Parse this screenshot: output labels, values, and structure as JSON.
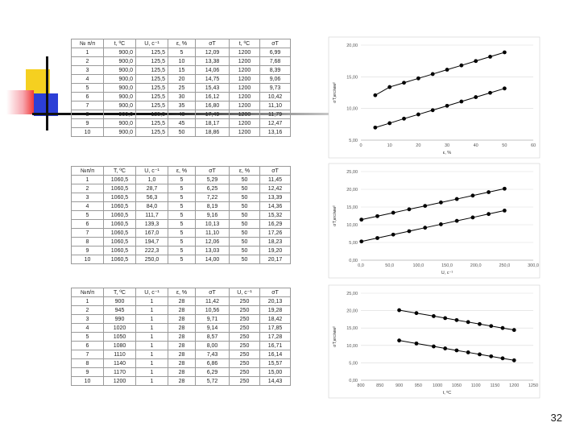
{
  "page_number": "32",
  "table1": {
    "headers": [
      "№ п/п",
      "t, ºC",
      "U, с⁻¹",
      "ε, %",
      "σT",
      "t, ºC",
      "σT"
    ],
    "rows": [
      [
        "1",
        "900,0",
        "125,5",
        "5",
        "12,09",
        "1200",
        "6,99"
      ],
      [
        "2",
        "900,0",
        "125,5",
        "10",
        "13,38",
        "1200",
        "7,68"
      ],
      [
        "3",
        "900,0",
        "125,5",
        "15",
        "14,06",
        "1200",
        "8,39"
      ],
      [
        "4",
        "900,0",
        "125,5",
        "20",
        "14,75",
        "1200",
        "9,06"
      ],
      [
        "5",
        "900,0",
        "125,5",
        "25",
        "15,43",
        "1200",
        "9,73"
      ],
      [
        "6",
        "900,0",
        "125,5",
        "30",
        "16,12",
        "1200",
        "10,42"
      ],
      [
        "7",
        "900,0",
        "125,5",
        "35",
        "16,80",
        "1200",
        "11,10"
      ],
      [
        "8",
        "900,0",
        "125,5",
        "40",
        "17,49",
        "1200",
        "11,79"
      ],
      [
        "9",
        "900,0",
        "125,5",
        "45",
        "18,17",
        "1200",
        "12,47"
      ],
      [
        "10",
        "900,0",
        "125,5",
        "50",
        "18,86",
        "1200",
        "13,16"
      ]
    ]
  },
  "table2": {
    "headers": [
      "№п/п",
      "T, ºC",
      "U, с⁻¹",
      "ε, %",
      "σT",
      "ε, %",
      "σT"
    ],
    "rows": [
      [
        "1",
        "1060,5",
        "1,0",
        "5",
        "5,29",
        "50",
        "11,45"
      ],
      [
        "2",
        "1060,5",
        "28,7",
        "5",
        "6,25",
        "50",
        "12,42"
      ],
      [
        "3",
        "1060,5",
        "56,3",
        "5",
        "7,22",
        "50",
        "13,39"
      ],
      [
        "4",
        "1060,5",
        "84,0",
        "5",
        "8,19",
        "50",
        "14,36"
      ],
      [
        "5",
        "1060,5",
        "111,7",
        "5",
        "9,16",
        "50",
        "15,32"
      ],
      [
        "6",
        "1060,5",
        "139,3",
        "5",
        "10,13",
        "50",
        "16,29"
      ],
      [
        "7",
        "1060,5",
        "167,0",
        "5",
        "11,10",
        "50",
        "17,26"
      ],
      [
        "8",
        "1060,5",
        "194,7",
        "5",
        "12,06",
        "50",
        "18,23"
      ],
      [
        "9",
        "1060,5",
        "222,3",
        "5",
        "13,03",
        "50",
        "19,20"
      ],
      [
        "10",
        "1060,5",
        "250,0",
        "5",
        "14,00",
        "50",
        "20,17"
      ]
    ]
  },
  "table3": {
    "headers": [
      "№п/п",
      "T, ºC",
      "U, с⁻¹",
      "ε, %",
      "σT",
      "U, с⁻¹",
      "σT"
    ],
    "rows": [
      [
        "1",
        "900",
        "1",
        "28",
        "11,42",
        "250",
        "20,13"
      ],
      [
        "2",
        "945",
        "1",
        "28",
        "10,56",
        "250",
        "19,28"
      ],
      [
        "3",
        "990",
        "1",
        "28",
        "9,71",
        "250",
        "18,42"
      ],
      [
        "4",
        "1020",
        "1",
        "28",
        "9,14",
        "250",
        "17,85"
      ],
      [
        "5",
        "1050",
        "1",
        "28",
        "8,57",
        "250",
        "17,28"
      ],
      [
        "6",
        "1080",
        "1",
        "28",
        "8,00",
        "250",
        "16,71"
      ],
      [
        "7",
        "1110",
        "1",
        "28",
        "7,43",
        "250",
        "16,14"
      ],
      [
        "8",
        "1140",
        "1",
        "28",
        "6,86",
        "250",
        "15,57"
      ],
      [
        "9",
        "1170",
        "1",
        "28",
        "6,29",
        "250",
        "15,00"
      ],
      [
        "10",
        "1200",
        "1",
        "28",
        "5,72",
        "250",
        "14,43"
      ]
    ]
  },
  "chart_data": [
    {
      "type": "line",
      "xlabel": "ε, %",
      "ylabel": "σT,кгс/мм²",
      "xlim": [
        0,
        60
      ],
      "ylim": [
        5,
        20
      ],
      "xticks": [
        "0",
        "10",
        "20",
        "30",
        "40",
        "50",
        "60"
      ],
      "yticks": [
        "5,00",
        "10,00",
        "15,00",
        "20,00"
      ],
      "x": [
        5,
        10,
        15,
        20,
        25,
        30,
        35,
        40,
        45,
        50
      ],
      "series": [
        {
          "values": [
            12.09,
            13.38,
            14.06,
            14.75,
            15.43,
            16.12,
            16.8,
            17.49,
            18.17,
            18.86
          ]
        },
        {
          "values": [
            6.99,
            7.68,
            8.39,
            9.06,
            9.73,
            10.42,
            11.1,
            11.79,
            12.47,
            13.16
          ]
        }
      ],
      "grid": true
    },
    {
      "type": "line",
      "xlabel": "U, с⁻¹",
      "ylabel": "σT,кгс/мм²",
      "xlim": [
        0,
        300
      ],
      "ylim": [
        0,
        25
      ],
      "xticks": [
        "0,0",
        "50,0",
        "100,0",
        "150,0",
        "200,0",
        "250,0",
        "300,0"
      ],
      "yticks": [
        "0,00",
        "5,00",
        "10,00",
        "15,00",
        "20,00",
        "25,00"
      ],
      "x": [
        1.0,
        28.7,
        56.3,
        84.0,
        111.7,
        139.3,
        167.0,
        194.7,
        222.3,
        250.0
      ],
      "series": [
        {
          "values": [
            11.45,
            12.42,
            13.39,
            14.36,
            15.32,
            16.29,
            17.26,
            18.23,
            19.2,
            20.17
          ]
        },
        {
          "values": [
            5.29,
            6.25,
            7.22,
            8.19,
            9.16,
            10.13,
            11.1,
            12.06,
            13.03,
            14.0
          ]
        }
      ],
      "grid": true
    },
    {
      "type": "line",
      "xlabel": "t, ºC",
      "ylabel": "σT,кгс/мм²",
      "xlim": [
        800,
        1250
      ],
      "ylim": [
        0,
        25
      ],
      "xticks": [
        "800",
        "850",
        "900",
        "950",
        "1000",
        "1050",
        "1100",
        "1150",
        "1200",
        "1250"
      ],
      "yticks": [
        "0,00",
        "5,00",
        "10,00",
        "15,00",
        "20,00",
        "25,00"
      ],
      "x": [
        900,
        945,
        990,
        1020,
        1050,
        1080,
        1110,
        1140,
        1170,
        1200
      ],
      "series": [
        {
          "values": [
            20.13,
            19.28,
            18.42,
            17.85,
            17.28,
            16.71,
            16.14,
            15.57,
            15.0,
            14.43
          ]
        },
        {
          "values": [
            11.42,
            10.56,
            9.71,
            9.14,
            8.57,
            8.0,
            7.43,
            6.86,
            6.29,
            5.72
          ]
        }
      ],
      "grid": true
    }
  ],
  "colors": {
    "deco_yellow": "#f5d020",
    "deco_blue": "#2c3fd6",
    "deco_red": "#f03a3a",
    "deco_pink": "#f7a8b0"
  }
}
